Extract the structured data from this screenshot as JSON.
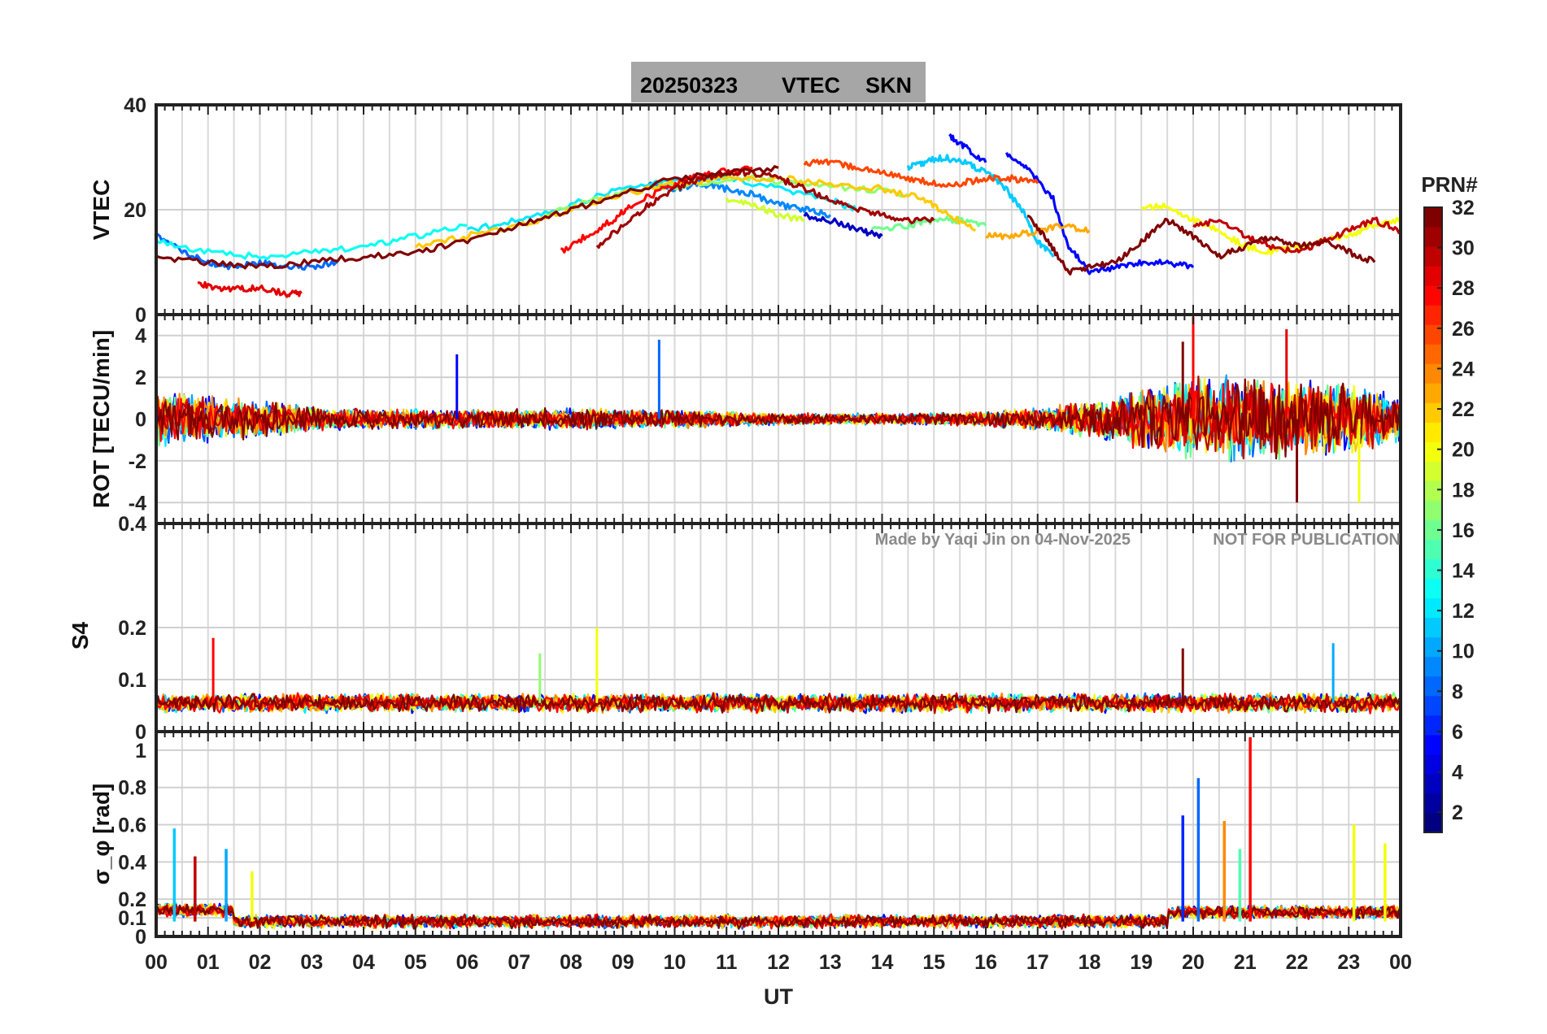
{
  "title": {
    "date": "20250323",
    "quantity": "VTEC",
    "station": "SKN",
    "background": "#a6a6a6"
  },
  "watermark": {
    "author": "Made by Yaqi Jin on 04-Nov-2025",
    "note": "NOT FOR PUBLICATION"
  },
  "xaxis": {
    "label": "UT",
    "ticks": [
      "00",
      "01",
      "02",
      "03",
      "04",
      "05",
      "06",
      "07",
      "08",
      "09",
      "10",
      "11",
      "12",
      "13",
      "14",
      "15",
      "16",
      "17",
      "18",
      "19",
      "20",
      "21",
      "22",
      "23",
      "00"
    ],
    "range_hours": [
      0,
      24
    ]
  },
  "colorbar": {
    "label": "PRN#",
    "range": [
      1,
      32
    ],
    "ticks": [
      "2",
      "4",
      "6",
      "8",
      "10",
      "12",
      "14",
      "16",
      "18",
      "20",
      "22",
      "24",
      "26",
      "28",
      "30",
      "32"
    ],
    "colormap": "jet"
  },
  "chart_data": [
    {
      "type": "line",
      "panel": "vtec",
      "ylabel": "VTEC",
      "ylim": [
        0,
        40
      ],
      "yticks": [
        "0",
        "20",
        "40"
      ],
      "grid": true,
      "series_description": "one line per satellite PRN, colored by PRN",
      "series": [
        {
          "prn": 3,
          "x": [
            12.5,
            13.0,
            13.6,
            14.0
          ],
          "y": [
            19,
            18,
            16,
            15
          ]
        },
        {
          "prn": 5,
          "x": [
            15.3,
            15.6,
            16.0
          ],
          "y": [
            34,
            32,
            29
          ]
        },
        {
          "prn": 5,
          "x": [
            16.4,
            16.8,
            17.3,
            17.6,
            18.0,
            18.5,
            19.0,
            19.5,
            20.0
          ],
          "y": [
            31,
            28,
            22,
            13,
            8,
            9,
            10,
            10,
            9
          ]
        },
        {
          "prn": 8,
          "x": [
            0.0,
            0.5,
            1.0,
            1.5,
            2.0,
            2.5,
            3.0,
            3.5
          ],
          "y": [
            15,
            12,
            10,
            9,
            10,
            9,
            9,
            10
          ]
        },
        {
          "prn": 9,
          "x": [
            9.5,
            10.0,
            10.5,
            11.0,
            11.5,
            12.0,
            12.5,
            13.0
          ],
          "y": [
            25,
            24,
            25,
            24,
            23,
            21,
            20,
            19
          ]
        },
        {
          "prn": 11,
          "x": [
            14.5,
            14.8,
            15.2,
            15.6,
            16.0,
            16.3,
            16.7,
            17.0,
            17.3
          ],
          "y": [
            28,
            29,
            30,
            29,
            27,
            25,
            20,
            14,
            11
          ]
        },
        {
          "prn": 12,
          "x": [
            6.0,
            7.0,
            8.0,
            9.0,
            10.0,
            11.0,
            12.0,
            13.0,
            13.5
          ],
          "y": [
            16,
            18,
            21,
            24,
            26,
            26,
            24,
            22,
            20
          ]
        },
        {
          "prn": 13,
          "x": [
            0.0,
            1.0,
            2.0,
            3.0,
            4.0,
            5.0,
            6.0
          ],
          "y": [
            14,
            12,
            11,
            12,
            13,
            15,
            17
          ]
        },
        {
          "prn": 16,
          "x": [
            13.8,
            14.5,
            15.0,
            15.5,
            16.0
          ],
          "y": [
            16,
            17,
            18,
            18,
            17
          ]
        },
        {
          "prn": 17,
          "x": [
            7.5,
            8.5,
            9.5,
            10.5,
            11.5,
            12.5,
            13.5,
            14.5
          ],
          "y": [
            19,
            22,
            24,
            25,
            26,
            25,
            24,
            23
          ]
        },
        {
          "prn": 19,
          "x": [
            11.0,
            11.5,
            12.0,
            12.5
          ],
          "y": [
            22,
            21,
            19,
            18
          ]
        },
        {
          "prn": 20,
          "x": [
            19.0,
            19.5,
            20.0,
            20.5,
            21.0,
            21.5,
            22.0,
            22.5,
            23.0,
            23.5,
            24.0
          ],
          "y": [
            20,
            21,
            18,
            16,
            13,
            12,
            13,
            14,
            15,
            17,
            18
          ]
        },
        {
          "prn": 22,
          "x": [
            5.0,
            6.0,
            7.0,
            8.0,
            9.0,
            10.0,
            11.0,
            12.0,
            13.0,
            14.0,
            14.8,
            15.3,
            15.8
          ],
          "y": [
            13,
            15,
            17,
            20,
            23,
            25,
            26,
            26,
            25,
            24,
            22,
            19,
            16
          ]
        },
        {
          "prn": 23,
          "x": [
            16.0,
            16.5,
            17.0,
            17.5,
            18.0
          ],
          "y": [
            15,
            15,
            16,
            17,
            16
          ]
        },
        {
          "prn": 26,
          "x": [
            12.5,
            13.0,
            13.5,
            14.0,
            14.5,
            15.0,
            15.5,
            16.0,
            16.5,
            17.0
          ],
          "y": [
            29,
            29,
            28,
            27,
            26,
            25,
            25,
            26,
            26,
            25
          ]
        },
        {
          "prn": 28,
          "x": [
            7.8,
            8.3,
            8.8,
            9.2,
            9.8,
            10.3,
            10.8,
            11.5
          ],
          "y": [
            12,
            15,
            18,
            21,
            24,
            26,
            27,
            28
          ]
        },
        {
          "prn": 29,
          "x": [
            0.8,
            1.2,
            1.6,
            2.0,
            2.5,
            2.8
          ],
          "y": [
            6,
            5,
            5,
            5,
            4,
            4
          ]
        },
        {
          "prn": 30,
          "x": [
            20.0,
            20.5,
            21.0,
            21.5,
            22.0,
            22.5,
            23.0,
            23.5,
            24.0
          ],
          "y": [
            17,
            18,
            15,
            13,
            12,
            14,
            16,
            18,
            16
          ]
        },
        {
          "prn": 31,
          "x": [
            8.5,
            9.0,
            9.5,
            10.0,
            10.5,
            11.0,
            11.5,
            12.0,
            12.5,
            13.0,
            13.5,
            14.0,
            14.5,
            15.0
          ],
          "y": [
            13,
            17,
            21,
            24,
            26,
            27,
            27,
            26,
            24,
            22,
            20,
            19,
            18,
            18
          ]
        },
        {
          "prn": 32,
          "x": [
            0.0,
            1.0,
            2.0,
            3.0,
            4.0,
            5.0,
            6.0,
            7.0,
            8.0,
            9.0,
            10.0,
            11.0,
            12.0
          ],
          "y": [
            11,
            10,
            9,
            10,
            11,
            12,
            14,
            17,
            20,
            23,
            26,
            27,
            28
          ]
        },
        {
          "prn": 32,
          "x": [
            16.8,
            17.2,
            17.6,
            18.0,
            18.5,
            19.0,
            19.5,
            20.0,
            20.5,
            21.0,
            21.5,
            22.0,
            22.5,
            23.0,
            23.5
          ],
          "y": [
            19,
            14,
            8,
            9,
            10,
            14,
            18,
            15,
            11,
            13,
            15,
            13,
            14,
            12,
            10
          ]
        }
      ]
    },
    {
      "type": "line",
      "panel": "rot",
      "ylabel": "ROT [TECU/min]",
      "ylim": [
        -5,
        5
      ],
      "yticks": [
        "-4",
        "-2",
        "0",
        "2",
        "4"
      ],
      "grid": true,
      "envelope": {
        "hours": [
          0,
          1,
          2,
          3,
          4,
          5,
          6,
          7,
          8,
          9,
          10,
          11,
          12,
          13,
          14,
          15,
          16,
          17,
          18,
          19,
          20,
          21,
          22,
          23,
          24
        ],
        "amplitude": [
          1.4,
          1.2,
          1.0,
          0.6,
          0.5,
          0.5,
          0.5,
          0.5,
          0.6,
          0.5,
          0.5,
          0.4,
          0.3,
          0.3,
          0.3,
          0.3,
          0.4,
          0.6,
          0.9,
          1.6,
          2.2,
          2.2,
          2.0,
          1.8,
          1.2
        ]
      },
      "spikes": [
        {
          "prn": 5,
          "x": 5.8,
          "y": 3.1
        },
        {
          "prn": 8,
          "x": 9.7,
          "y": 3.8
        },
        {
          "prn": 28,
          "x": 20.0,
          "y": 4.9
        },
        {
          "prn": 32,
          "x": 19.8,
          "y": 3.7
        },
        {
          "prn": 32,
          "x": 22.0,
          "y": -4.0
        },
        {
          "prn": 20,
          "x": 23.2,
          "y": -4.0
        },
        {
          "prn": 29,
          "x": 21.8,
          "y": 4.3
        }
      ]
    },
    {
      "type": "line",
      "panel": "s4",
      "ylabel": "S4",
      "ylim": [
        0,
        0.4
      ],
      "yticks": [
        "0",
        "0.1",
        "0.2",
        "0.4"
      ],
      "grid": true,
      "baseline": 0.055,
      "noise": 0.02,
      "spikes": [
        {
          "prn": 28,
          "x": 1.1,
          "y": 0.18
        },
        {
          "prn": 20,
          "x": 8.5,
          "y": 0.2
        },
        {
          "prn": 17,
          "x": 7.4,
          "y": 0.15
        },
        {
          "prn": 32,
          "x": 19.8,
          "y": 0.16
        },
        {
          "prn": 10,
          "x": 22.7,
          "y": 0.17
        }
      ]
    },
    {
      "type": "line",
      "panel": "sigma_phi",
      "ylabel": "σ_φ [rad]",
      "ylim": [
        0,
        1.1
      ],
      "yticks": [
        "0",
        "0.1",
        "0.2",
        "0.4",
        "0.6",
        "0.8",
        "1"
      ],
      "grid": true,
      "baseline": 0.08,
      "noise": 0.04,
      "spikes": [
        {
          "prn": 11,
          "x": 0.35,
          "y": 0.58
        },
        {
          "prn": 30,
          "x": 0.75,
          "y": 0.43
        },
        {
          "prn": 10,
          "x": 1.35,
          "y": 0.47
        },
        {
          "prn": 20,
          "x": 1.85,
          "y": 0.35
        },
        {
          "prn": 6,
          "x": 19.8,
          "y": 0.65
        },
        {
          "prn": 8,
          "x": 20.1,
          "y": 0.85
        },
        {
          "prn": 24,
          "x": 20.6,
          "y": 0.62
        },
        {
          "prn": 28,
          "x": 21.1,
          "y": 1.07
        },
        {
          "prn": 15,
          "x": 20.9,
          "y": 0.47
        },
        {
          "prn": 20,
          "x": 23.1,
          "y": 0.6
        },
        {
          "prn": 20,
          "x": 23.7,
          "y": 0.5
        }
      ]
    }
  ]
}
